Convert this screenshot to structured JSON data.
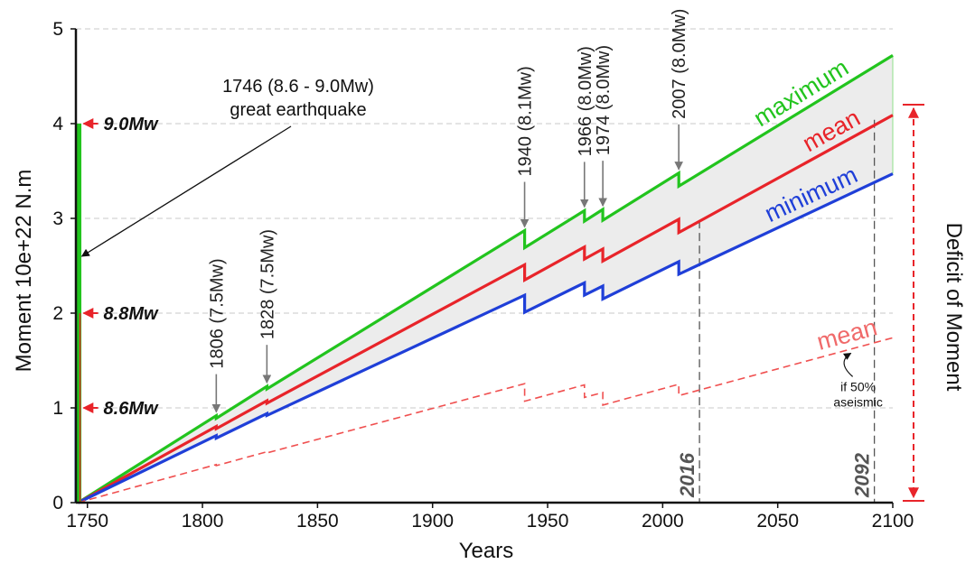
{
  "chart_data": {
    "type": "line",
    "title": "",
    "xlabel": "Years",
    "ylabel": "Moment 10e+22 N.m",
    "xlim": [
      1745,
      2100
    ],
    "ylim": [
      0,
      5
    ],
    "x_ticks": [
      1750,
      1800,
      1850,
      1900,
      1950,
      2000,
      2050,
      2100
    ],
    "y_ticks": [
      0,
      1,
      2,
      3,
      4,
      5
    ],
    "grid": "horizontal-dashed",
    "great_earthquake": {
      "year": 1746,
      "label_line1": "1746 (8.6 - 9.0Mw)",
      "label_line2": "great earthquake",
      "max_moment": 4.0,
      "mean_moment": 2.0,
      "min_moment": 1.0
    },
    "mw_levels": [
      {
        "label": "9.0Mw",
        "value": 4.0
      },
      {
        "label": "8.8Mw",
        "value": 2.0
      },
      {
        "label": "8.6Mw",
        "value": 1.0
      }
    ],
    "events": [
      {
        "label": "1806 (7.5Mw)",
        "year": 1806
      },
      {
        "label": "1828 (7.5Mw)",
        "year": 1828
      },
      {
        "label": "1940 (8.1Mw)",
        "year": 1940
      },
      {
        "label": "1966 (8.0Mw)",
        "year": 1966
      },
      {
        "label": "1974 (8.0Mw)",
        "year": 1974
      },
      {
        "label": "2007 (8.0Mw)",
        "year": 2007
      }
    ],
    "series": [
      {
        "name": "maximum",
        "color": "#22c41e",
        "style": "solid",
        "points": [
          [
            1746,
            0
          ],
          [
            1806,
            0.918
          ],
          [
            1806,
            0.89
          ],
          [
            1828,
            1.227
          ],
          [
            1828,
            1.2
          ],
          [
            1940,
            2.871
          ],
          [
            1940,
            2.69
          ],
          [
            1966,
            3.082
          ],
          [
            1966,
            2.97
          ],
          [
            1974,
            3.094
          ],
          [
            1974,
            2.98
          ],
          [
            2007,
            3.478
          ],
          [
            2007,
            3.34
          ],
          [
            2100,
            4.72
          ]
        ]
      },
      {
        "name": "mean",
        "color": "#e8242a",
        "style": "solid",
        "points": [
          [
            1746,
            0
          ],
          [
            1806,
            0.804
          ],
          [
            1806,
            0.78
          ],
          [
            1828,
            1.075
          ],
          [
            1828,
            1.05
          ],
          [
            1940,
            2.51
          ],
          [
            1940,
            2.35
          ],
          [
            1966,
            2.698
          ],
          [
            1966,
            2.57
          ],
          [
            1974,
            2.677
          ],
          [
            1974,
            2.55
          ],
          [
            2007,
            2.99
          ],
          [
            2007,
            2.85
          ],
          [
            2100,
            4.09
          ]
        ]
      },
      {
        "name": "minimum",
        "color": "#1f3fd8",
        "style": "solid",
        "points": [
          [
            1746,
            0
          ],
          [
            1806,
            0.708
          ],
          [
            1806,
            0.68
          ],
          [
            1828,
            0.94
          ],
          [
            1828,
            0.92
          ],
          [
            1940,
            2.19
          ],
          [
            1940,
            2.01
          ],
          [
            1966,
            2.32
          ],
          [
            1966,
            2.19
          ],
          [
            1974,
            2.286
          ],
          [
            1974,
            2.15
          ],
          [
            2007,
            2.544
          ],
          [
            2007,
            2.41
          ],
          [
            2100,
            3.47
          ]
        ]
      },
      {
        "name": "mean",
        "note_line1": "if  50%",
        "note_line2": "aseismic",
        "color": "#f05050",
        "style": "dashed",
        "points": [
          [
            1746,
            0
          ],
          [
            1806,
            0.402
          ],
          [
            1806,
            0.39
          ],
          [
            1828,
            0.537
          ],
          [
            1828,
            0.525
          ],
          [
            1940,
            1.255
          ],
          [
            1940,
            1.07
          ],
          [
            1966,
            1.243
          ],
          [
            1966,
            1.11
          ],
          [
            1974,
            1.163
          ],
          [
            1974,
            1.03
          ],
          [
            2007,
            1.25
          ],
          [
            2007,
            1.13
          ],
          [
            2100,
            1.74
          ]
        ]
      }
    ],
    "year_markers": [
      {
        "label": "2016",
        "year": 2016,
        "top_value": 2.98
      },
      {
        "label": "2092",
        "year": 2092,
        "top_value": 4.04
      }
    ],
    "deficit_label": "Deficit of Moment",
    "deficit_range": [
      0,
      4.2
    ]
  }
}
